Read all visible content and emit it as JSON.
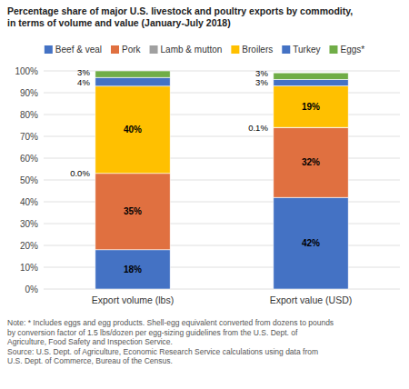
{
  "chart_data": {
    "type": "bar",
    "stacked": true,
    "title": "Percentage share of major U.S. livestock and poultry exports by commodity,\nin terms of volume and value (January-July 2018)",
    "categories": [
      "Export volume (lbs)",
      "Export value (USD)"
    ],
    "series": [
      {
        "name": "Beef & veal",
        "color": "#4472C4",
        "values": [
          18,
          42
        ],
        "value_labels": [
          "18%",
          "42%"
        ]
      },
      {
        "name": "Pork",
        "color": "#E07040",
        "values": [
          35,
          32
        ],
        "value_labels": [
          "35%",
          "32%"
        ]
      },
      {
        "name": "Lamb & mutton",
        "color": "#A0A0A0",
        "values": [
          0.0,
          0.1
        ],
        "value_labels": [
          "0.0%",
          "0.1%"
        ]
      },
      {
        "name": "Broilers",
        "color": "#FFC000",
        "values": [
          40,
          19
        ],
        "value_labels": [
          "40%",
          "19%"
        ]
      },
      {
        "name": "Turkey",
        "color": "#4472C4",
        "values": [
          4,
          3
        ],
        "value_labels": [
          "4%",
          "3%"
        ]
      },
      {
        "name": "Eggs*",
        "color": "#70AD47",
        "values": [
          3,
          3
        ],
        "value_labels": [
          "3%",
          "3%"
        ]
      }
    ],
    "ylim": [
      0,
      100
    ],
    "yticks": [
      {
        "value": 0,
        "label": "0%"
      },
      {
        "value": 10,
        "label": "10%"
      },
      {
        "value": 20,
        "label": "20%"
      },
      {
        "value": 30,
        "label": "30%"
      },
      {
        "value": 40,
        "label": "40%"
      },
      {
        "value": 50,
        "label": "50%"
      },
      {
        "value": 60,
        "label": "60%"
      },
      {
        "value": 70,
        "label": "70%"
      },
      {
        "value": 80,
        "label": "80%"
      },
      {
        "value": 90,
        "label": "90%"
      },
      {
        "value": 100,
        "label": "100%"
      }
    ],
    "grid": true,
    "legend": "top",
    "data_labels": true,
    "annotations": [
      "Note: * Includes eggs and egg products. Shell-egg equivalent converted from dozens to pounds\nby conversion factor of 1.5 lbs/dozen per egg-sizing guidelines from the U.S. Dept. of\nAgriculture, Food Safety and Inspection Service.\nSource: U.S. Dept. of Agriculture, Economic Research Service calculations using data from\nU.S. Dept. of Commerce, Bureau of the Census."
    ]
  }
}
